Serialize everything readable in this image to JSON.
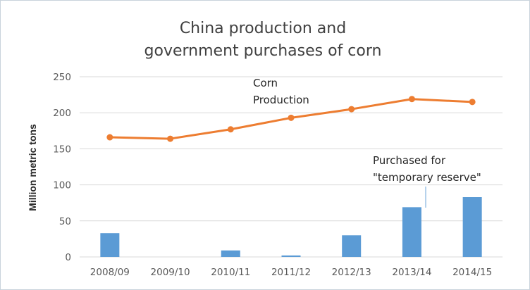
{
  "chart_data": {
    "type": "bar",
    "title_lines": [
      "China production and",
      "government purchases of corn"
    ],
    "xlabel": "",
    "ylabel": "Million metric tons",
    "categories": [
      "2008/09",
      "2009/10",
      "2010/11",
      "2011/12",
      "2012/13",
      "2013/14",
      "2014/15"
    ],
    "ylim": [
      0,
      250
    ],
    "yticks": [
      0,
      50,
      100,
      150,
      200,
      250
    ],
    "grid": true,
    "series": [
      {
        "name": "Purchased for \"temporary reserve\"",
        "type": "bar",
        "color": "#5b9bd5",
        "values": [
          33,
          0,
          9,
          2,
          30,
          69,
          83
        ]
      },
      {
        "name": "Corn Production",
        "type": "line",
        "color": "#ed7d31",
        "values": [
          166,
          164,
          177,
          193,
          205,
          219,
          215
        ]
      }
    ],
    "annotations": {
      "line_label_lines": [
        "Corn",
        "Production"
      ],
      "bar_label_lines": [
        "Purchased for",
        "\"temporary reserve\""
      ]
    }
  }
}
